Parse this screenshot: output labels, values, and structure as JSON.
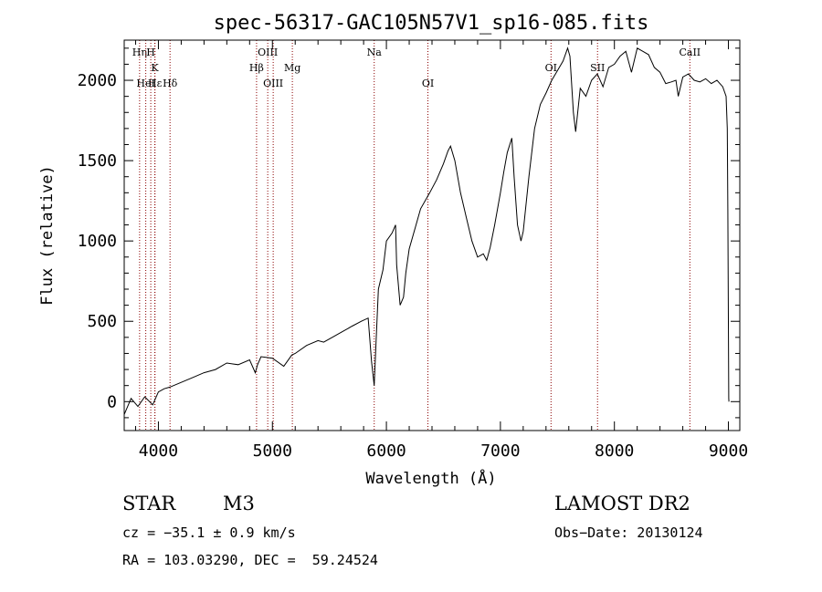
{
  "chart_data": {
    "type": "line",
    "title": "spec-56317-GAC105N57V1_sp16-085.fits",
    "xlabel": "Wavelength (Å)",
    "ylabel": "Flux (relative)",
    "xlim": [
      3700,
      9100
    ],
    "ylim": [
      -180,
      2250
    ],
    "xticks": [
      "4000",
      "5000",
      "6000",
      "7000",
      "8000",
      "9000"
    ],
    "yticks": [
      "0",
      "500",
      "1000",
      "1500",
      "2000"
    ],
    "series": [
      {
        "x": [
          3700,
          3760,
          3820,
          3880,
          3950,
          4000,
          4050,
          4100,
          4200,
          4300,
          4400,
          4500,
          4600,
          4700,
          4800,
          4850,
          4870,
          4900,
          5000,
          5100,
          5170,
          5200,
          5300,
          5400,
          5450,
          5500,
          5600,
          5700,
          5780,
          5840,
          5870,
          5893,
          5905,
          5930,
          5970,
          6000,
          6050,
          6080,
          6090,
          6120,
          6150,
          6170,
          6200,
          6260,
          6300,
          6380,
          6440,
          6500,
          6540,
          6563,
          6600,
          6650,
          6700,
          6750,
          6800,
          6850,
          6880,
          6910,
          6950,
          7000,
          7030,
          7060,
          7100,
          7120,
          7150,
          7180,
          7200,
          7250,
          7300,
          7350,
          7400,
          7450,
          7500,
          7550,
          7590,
          7610,
          7640,
          7660,
          7700,
          7750,
          7800,
          7850,
          7900,
          7950,
          8000,
          8050,
          8100,
          8150,
          8200,
          8250,
          8300,
          8350,
          8400,
          8450,
          8500,
          8540,
          8560,
          8600,
          8650,
          8700,
          8750,
          8800,
          8850,
          8900,
          8950,
          8980,
          8990,
          8995,
          9000,
          9003,
          9005
        ],
        "y": [
          -80,
          20,
          -30,
          30,
          -20,
          60,
          80,
          90,
          120,
          150,
          180,
          200,
          240,
          230,
          260,
          180,
          230,
          280,
          270,
          220,
          290,
          300,
          350,
          380,
          370,
          390,
          430,
          470,
          500,
          520,
          250,
          100,
          300,
          700,
          820,
          1000,
          1050,
          1100,
          850,
          600,
          650,
          800,
          950,
          1100,
          1200,
          1300,
          1380,
          1480,
          1560,
          1590,
          1500,
          1300,
          1150,
          1000,
          900,
          920,
          880,
          960,
          1100,
          1300,
          1430,
          1550,
          1640,
          1400,
          1100,
          1000,
          1060,
          1400,
          1700,
          1850,
          1920,
          2000,
          2060,
          2120,
          2200,
          2150,
          1800,
          1680,
          1950,
          1900,
          2000,
          2040,
          1960,
          2080,
          2100,
          2150,
          2180,
          2050,
          2200,
          2180,
          2160,
          2080,
          2050,
          1980,
          1990,
          2000,
          1900,
          2020,
          2040,
          2000,
          1990,
          2010,
          1980,
          2000,
          1960,
          1900,
          1700,
          1200,
          500,
          20,
          0
        ]
      }
    ],
    "lines": [
      {
        "label": "Hη",
        "x": 3835,
        "row": 1
      },
      {
        "label": "HeI",
        "x": 3889,
        "row": 3
      },
      {
        "label": "H",
        "x": 3933,
        "row": 1
      },
      {
        "label": "K",
        "x": 3968,
        "row": 2
      },
      {
        "label": "Hε",
        "x": 3970,
        "row": 3
      },
      {
        "label": "Hδ",
        "x": 4102,
        "row": 3
      },
      {
        "label": "Hβ",
        "x": 4861,
        "row": 2
      },
      {
        "label": "OIII",
        "x": 4959,
        "row": 1
      },
      {
        "label": "OIII",
        "x": 5007,
        "row": 3
      },
      {
        "label": "Mg",
        "x": 5175,
        "row": 2
      },
      {
        "label": "Na",
        "x": 5893,
        "row": 1
      },
      {
        "label": "OI",
        "x": 6364,
        "row": 3
      },
      {
        "label": "OI",
        "x": 7444,
        "row": 2
      },
      {
        "label": "SII",
        "x": 7852,
        "row": 2
      },
      {
        "label": "CaII",
        "x": 8662,
        "row": 1
      }
    ]
  },
  "info": {
    "class": "STAR",
    "subclass": "M3",
    "survey": "LAMOST DR2",
    "cz": "cz = −35.1 ± 0.9 km/s",
    "obs_date": "Obs−Date: 20130124",
    "coords": "RA = 103.03290, DEC =  59.24524"
  }
}
